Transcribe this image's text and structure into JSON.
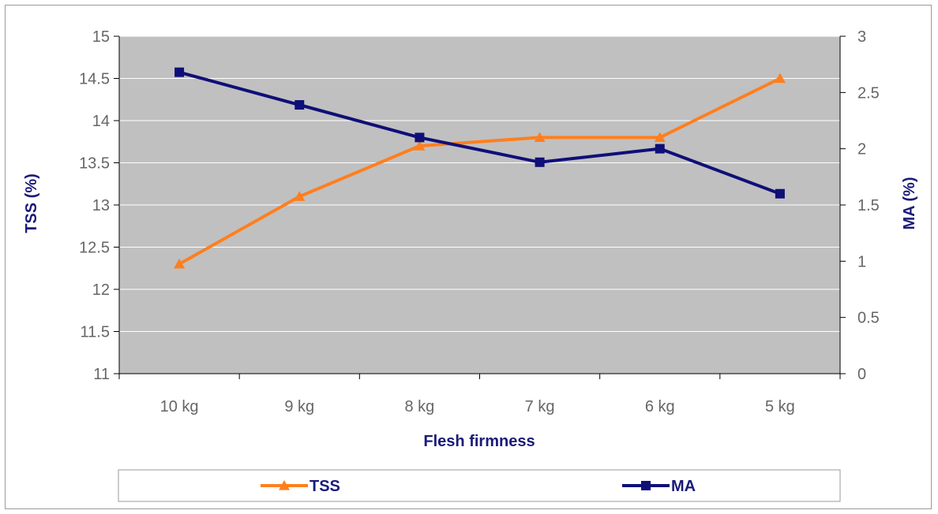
{
  "chart_data": {
    "type": "line",
    "title": "",
    "xlabel": "Flesh firmness",
    "ylabel": "TSS (%)",
    "y2label": "MA (%)",
    "categories": [
      "10 kg",
      "9 kg",
      "8 kg",
      "7 kg",
      "6 kg",
      "5 kg"
    ],
    "ylim": [
      11,
      15
    ],
    "yticks": [
      "11",
      "11.5",
      "12",
      "12.5",
      "13",
      "13.5",
      "14",
      "14.5",
      "15"
    ],
    "y2lim": [
      0,
      3
    ],
    "y2ticks": [
      "0",
      "0.5",
      "1",
      "1.5",
      "2",
      "2.5",
      "3"
    ],
    "grid": true,
    "legend_position": "bottom",
    "series": [
      {
        "name": "TSS",
        "axis": "left",
        "marker": "triangle",
        "color": "#ff7f1e",
        "values": [
          12.3,
          13.1,
          13.7,
          13.8,
          13.8,
          14.5
        ]
      },
      {
        "name": "MA",
        "axis": "right",
        "marker": "square",
        "color": "#0f0f78",
        "values": [
          2.68,
          2.39,
          2.1,
          1.88,
          2.0,
          1.6
        ]
      }
    ],
    "plot_background": "#c0c0c0",
    "grid_color": "#ffffff"
  }
}
